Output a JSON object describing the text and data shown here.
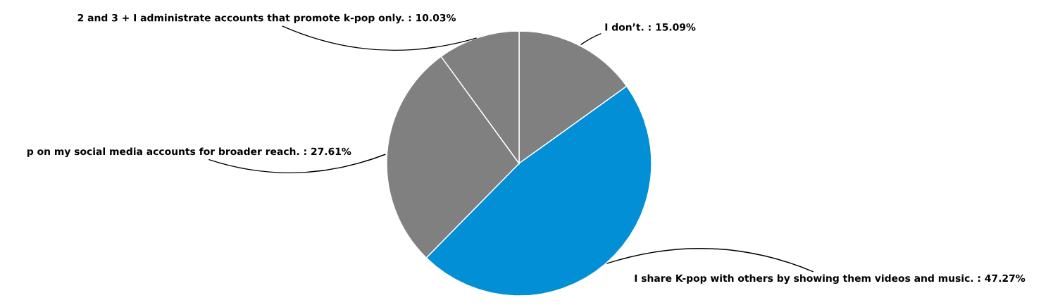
{
  "chart_data": {
    "type": "pie",
    "categories": [
      "I don’t.",
      "I share K-pop with others by showing them videos and music.",
      "p on my social media accounts for broader reach.",
      "2 and 3 + I administrate accounts that promote k-pop only."
    ],
    "values": [
      15.09,
      47.27,
      27.61,
      10.03
    ],
    "value_labels": [
      "15.09%",
      "47.27%",
      "27.61%",
      "10.03%"
    ],
    "colors": [
      "#808080",
      "#028fd6",
      "#808080",
      "#808080"
    ]
  }
}
